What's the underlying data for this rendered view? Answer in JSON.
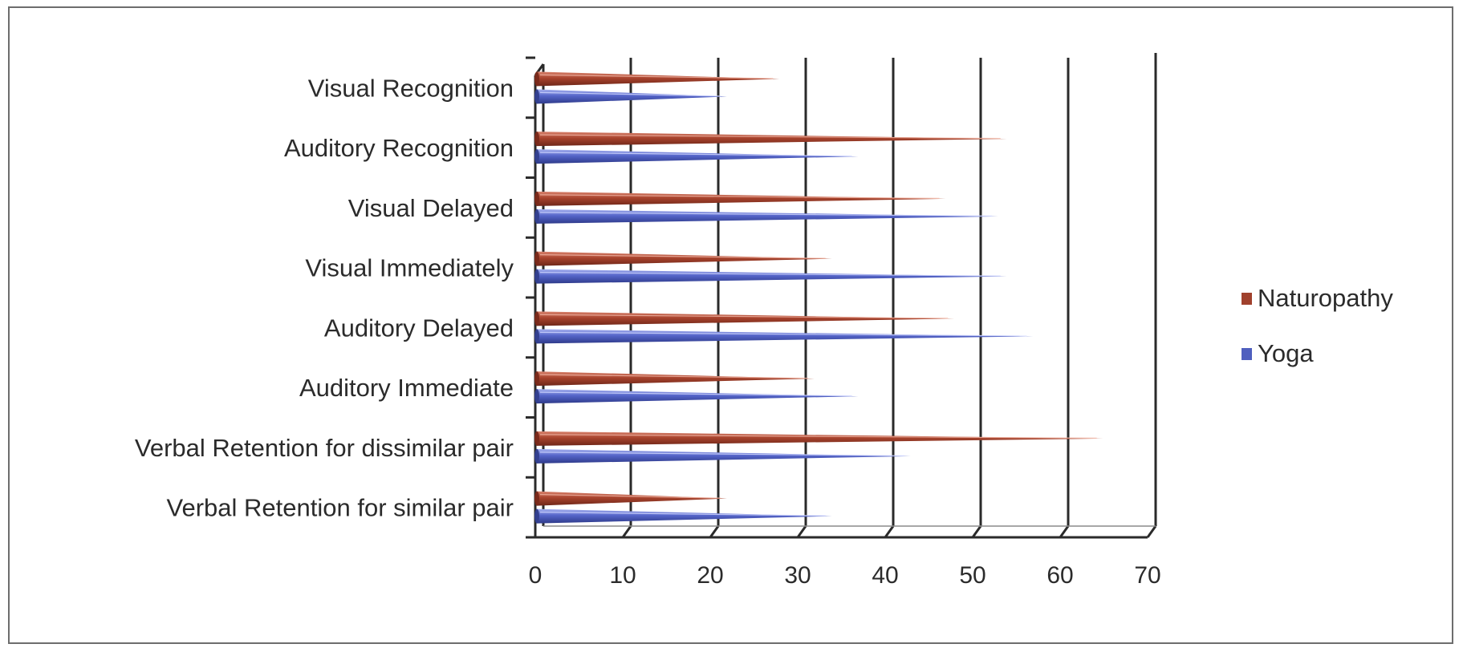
{
  "chart_data": {
    "type": "bar",
    "orientation": "horizontal",
    "style": "3d-cone",
    "categories": [
      "Verbal Retention for similar pair",
      "Verbal Retention for dissimilar pair",
      "Auditory Immediate",
      "Auditory Delayed",
      "Visual Immediately",
      "Visual Delayed",
      "Auditory Recognition",
      "Visual Recognition"
    ],
    "series": [
      {
        "name": "Naturopathy",
        "color": "#a0412d",
        "values": [
          21,
          64,
          31,
          47,
          33,
          46,
          53,
          27
        ]
      },
      {
        "name": "Yoga",
        "color": "#4f5fbf",
        "values": [
          33,
          42,
          36,
          56,
          53,
          52,
          36,
          21
        ]
      }
    ],
    "xlim": [
      0,
      70
    ],
    "xticks": [
      0,
      10,
      20,
      30,
      40,
      50,
      60,
      70
    ],
    "title": "",
    "xlabel": "",
    "ylabel": "",
    "grid": true,
    "legend": "right"
  }
}
